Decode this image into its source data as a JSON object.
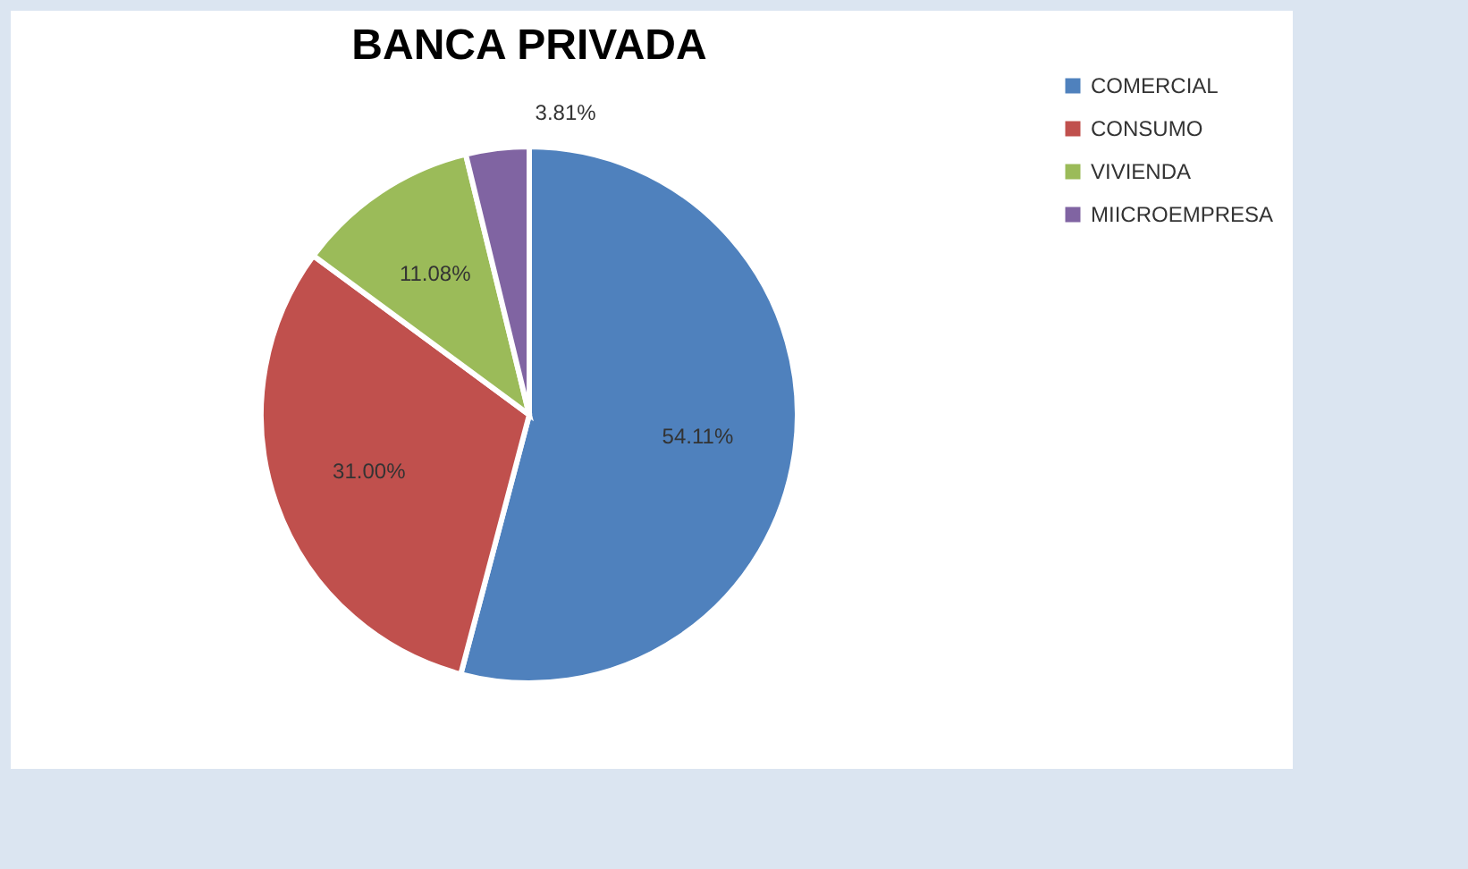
{
  "chart_data": {
    "type": "pie",
    "title": "BANCA PRIVADA",
    "categories": [
      "COMERCIAL",
      "CONSUMO",
      "VIVIENDA",
      "MIICROEMPRESA"
    ],
    "values": [
      54.11,
      31.0,
      11.08,
      3.81
    ],
    "value_labels": [
      "54.11%",
      "31.00%",
      "11.08%",
      "3.81%"
    ],
    "colors": [
      "#4f81bd",
      "#c0504d",
      "#9bbb59",
      "#8064a2"
    ],
    "legend": "right"
  }
}
